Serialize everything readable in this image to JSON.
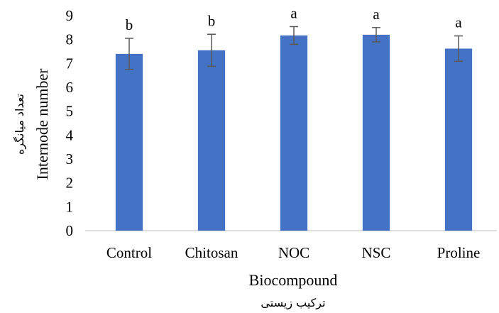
{
  "chart_data": {
    "type": "bar",
    "categories": [
      "Control",
      "Chitosan",
      "NOC",
      "NSC",
      "Proline"
    ],
    "values": [
      7.4,
      7.55,
      8.17,
      8.2,
      7.62
    ],
    "error": [
      0.65,
      0.67,
      0.37,
      0.3,
      0.53
    ],
    "significance": [
      "b",
      "b",
      "a",
      "a",
      "a"
    ],
    "xlabel": "Biocompound",
    "xlabel_fa": "ترکیب زیستی",
    "ylabel": "Internode number",
    "ylabel_fa": "تعداد میانگره",
    "ylim": [
      0,
      9
    ],
    "yticks": [
      "0",
      "1",
      "2",
      "3",
      "4",
      "5",
      "6",
      "7",
      "8",
      "9"
    ],
    "grid": false,
    "bar_color": "#4472c4",
    "error_color": "#595959"
  }
}
